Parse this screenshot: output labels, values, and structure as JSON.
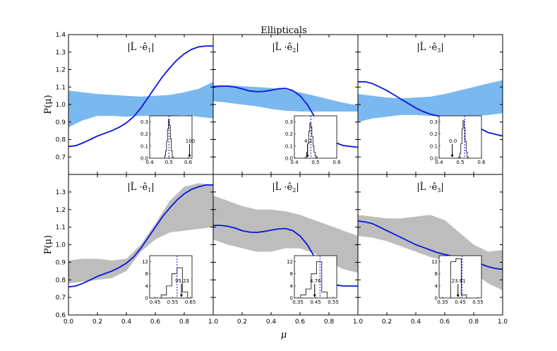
{
  "chart_data": {
    "type": "line",
    "title": "Ellipticals",
    "xlabel": "μ",
    "ylabel": "P(μ)",
    "xlim": [
      0.0,
      1.0
    ],
    "xticks": [
      "0.0",
      "0.2",
      "0.4",
      "0.6",
      "0.8",
      "1.0"
    ],
    "rows": [
      {
        "ylim": [
          0.6,
          1.4
        ],
        "yticks": [
          "1.4",
          "1.3",
          "1.2",
          "1.1",
          "1.0",
          "0.9",
          "0.8",
          "0.7"
        ],
        "band_color": "#7ab8f0",
        "panels": [
          {
            "label_num": "1",
            "band": {
              "x": [
                0,
                0.1,
                0.2,
                0.3,
                0.4,
                0.5,
                0.6,
                0.7,
                0.8,
                0.9,
                1.0
              ],
              "upper": [
                1.08,
                1.07,
                1.06,
                1.055,
                1.05,
                1.045,
                1.05,
                1.055,
                1.07,
                1.09,
                1.13
              ],
              "lower": [
                0.87,
                0.91,
                0.935,
                0.935,
                0.93,
                0.935,
                0.935,
                0.935,
                0.94,
                0.93,
                0.92
              ]
            },
            "curve": {
              "x": [
                0,
                0.05,
                0.1,
                0.15,
                0.2,
                0.25,
                0.3,
                0.35,
                0.4,
                0.45,
                0.5,
                0.55,
                0.6,
                0.65,
                0.7,
                0.75,
                0.8,
                0.85,
                0.9,
                0.95,
                1.0
              ],
              "y": [
                0.76,
                0.765,
                0.78,
                0.8,
                0.82,
                0.835,
                0.85,
                0.87,
                0.895,
                0.93,
                0.98,
                1.04,
                1.1,
                1.16,
                1.21,
                1.255,
                1.29,
                1.315,
                1.33,
                1.335,
                1.335
              ]
            },
            "inset": {
              "xlim": [
                0.4,
                0.62
              ],
              "ylim": [
                0,
                0.35
              ],
              "xticks": [
                "0.4",
                "0.5",
                "0.6"
              ],
              "yticks": [
                "0.3",
                "0.2",
                "0.1",
                "0.0"
              ],
              "hist_x": [
                0.48,
                0.485,
                0.49,
                0.495,
                0.5,
                0.505,
                0.51,
                0.515,
                0.52
              ],
              "hist_y": [
                0.02,
                0.06,
                0.14,
                0.24,
                0.32,
                0.27,
                0.16,
                0.06,
                0.01
              ],
              "mean": 0.5,
              "observed": 0.607,
              "annotation": "100"
            }
          },
          {
            "label_num": "2",
            "band": {
              "x": [
                0,
                0.1,
                0.2,
                0.3,
                0.4,
                0.5,
                0.6,
                0.7,
                0.8,
                0.9,
                1.0
              ],
              "upper": [
                1.11,
                1.11,
                1.105,
                1.1,
                1.095,
                1.085,
                1.07,
                1.05,
                1.03,
                1.01,
                0.995
              ],
              "lower": [
                1.02,
                1.01,
                1.0,
                0.99,
                0.975,
                0.965,
                0.96,
                0.96,
                0.96,
                0.96,
                0.96
              ]
            },
            "curve": {
              "x": [
                0,
                0.05,
                0.1,
                0.15,
                0.2,
                0.25,
                0.3,
                0.35,
                0.4,
                0.45,
                0.5,
                0.55,
                0.6,
                0.65,
                0.7,
                0.75,
                0.8,
                0.85,
                0.9,
                0.95,
                1.0
              ],
              "y": [
                1.1,
                1.105,
                1.105,
                1.1,
                1.09,
                1.078,
                1.073,
                1.075,
                1.082,
                1.09,
                1.092,
                1.08,
                1.05,
                1.0,
                0.93,
                0.86,
                0.81,
                0.78,
                0.765,
                0.76,
                0.755
              ]
            },
            "inset": {
              "xlim": [
                0.4,
                0.6
              ],
              "ylim": [
                0,
                0.35
              ],
              "xticks": [
                "0.4",
                "0.5",
                "0.6"
              ],
              "yticks": [
                "0.3",
                "0.2",
                "0.1",
                "0.0"
              ],
              "hist_x": [
                0.455,
                0.46,
                0.465,
                0.47,
                0.475,
                0.48,
                0.485,
                0.49,
                0.495,
                0.5,
                0.505
              ],
              "hist_y": [
                0.01,
                0.05,
                0.12,
                0.22,
                0.29,
                0.26,
                0.18,
                0.1,
                0.05,
                0.02,
                0.01
              ],
              "mean": 0.478,
              "observed": 0.462,
              "annotation": "4.2"
            }
          },
          {
            "label_num": "3",
            "band": {
              "x": [
                0,
                0.1,
                0.2,
                0.3,
                0.4,
                0.5,
                0.6,
                0.7,
                0.8,
                0.9,
                1.0
              ],
              "upper": [
                1.06,
                1.05,
                1.04,
                1.035,
                1.04,
                1.045,
                1.06,
                1.08,
                1.1,
                1.12,
                1.14
              ],
              "lower": [
                0.9,
                0.92,
                0.93,
                0.94,
                0.94,
                0.935,
                0.93,
                0.93,
                0.935,
                0.94,
                0.95
              ]
            },
            "curve": {
              "x": [
                0,
                0.05,
                0.1,
                0.15,
                0.2,
                0.25,
                0.3,
                0.35,
                0.4,
                0.45,
                0.5,
                0.55,
                0.6,
                0.65,
                0.7,
                0.75,
                0.8,
                0.85,
                0.9,
                0.95,
                1.0
              ],
              "y": [
                1.13,
                1.13,
                1.12,
                1.1,
                1.08,
                1.055,
                1.03,
                1.005,
                0.98,
                0.96,
                0.945,
                0.935,
                0.93,
                0.925,
                0.915,
                0.9,
                0.88,
                0.86,
                0.84,
                0.83,
                0.82
              ]
            },
            "inset": {
              "xlim": [
                0.4,
                0.6
              ],
              "ylim": [
                0,
                0.35
              ],
              "xticks": [
                "0.4",
                "0.5",
                "0.6"
              ],
              "yticks": [
                "0.3",
                "0.2",
                "0.1",
                "0.0"
              ],
              "hist_x": [
                0.495,
                0.5,
                0.505,
                0.51,
                0.515,
                0.52,
                0.525,
                0.53,
                0.535
              ],
              "hist_y": [
                0.01,
                0.04,
                0.12,
                0.24,
                0.31,
                0.25,
                0.14,
                0.05,
                0.01
              ],
              "mean": 0.52,
              "observed": 0.462,
              "annotation": "0.0"
            }
          }
        ]
      },
      {
        "ylim": [
          0.6,
          1.4
        ],
        "yticks": [
          "1.3",
          "1.2",
          "1.1",
          "1.0",
          "0.9",
          "0.8",
          "0.7",
          "0.6"
        ],
        "band_color": "#bdbdbd",
        "panels": [
          {
            "label_num": "1",
            "band": {
              "x": [
                0,
                0.1,
                0.2,
                0.3,
                0.4,
                0.5,
                0.6,
                0.7,
                0.8,
                0.9,
                1.0
              ],
              "upper": [
                0.91,
                0.92,
                0.92,
                0.91,
                0.92,
                1.0,
                1.12,
                1.25,
                1.33,
                1.35,
                1.34
              ],
              "lower": [
                0.78,
                0.79,
                0.8,
                0.81,
                0.85,
                0.96,
                1.03,
                1.07,
                1.08,
                1.09,
                1.1
              ]
            },
            "curve": {
              "x": [
                0,
                0.05,
                0.1,
                0.15,
                0.2,
                0.25,
                0.3,
                0.35,
                0.4,
                0.45,
                0.5,
                0.55,
                0.6,
                0.65,
                0.7,
                0.75,
                0.8,
                0.85,
                0.9,
                0.95,
                1.0
              ],
              "y": [
                0.76,
                0.765,
                0.78,
                0.8,
                0.82,
                0.835,
                0.85,
                0.87,
                0.895,
                0.93,
                0.98,
                1.04,
                1.1,
                1.16,
                1.21,
                1.255,
                1.29,
                1.315,
                1.33,
                1.34,
                1.34
              ]
            },
            "inset": {
              "xlim": [
                0.42,
                0.66
              ],
              "ylim": [
                0,
                14
              ],
              "xticks": [
                "0.45",
                "0.55",
                "0.65"
              ],
              "yticks": [
                "12",
                "8",
                "4",
                "0"
              ],
              "hist_x": [
                0.5,
                0.53,
                0.56,
                0.59,
                0.62
              ],
              "hist_y": [
                1,
                4,
                8,
                10,
                2
              ],
              "mean": 0.575,
              "observed": 0.6,
              "annotation": "95.23"
            }
          },
          {
            "label_num": "2",
            "band": {
              "x": [
                0,
                0.1,
                0.2,
                0.3,
                0.4,
                0.5,
                0.6,
                0.7,
                0.8,
                0.9,
                1.0
              ],
              "upper": [
                1.28,
                1.25,
                1.22,
                1.2,
                1.2,
                1.19,
                1.17,
                1.14,
                1.11,
                1.08,
                1.05
              ],
              "lower": [
                1.03,
                1.0,
                0.98,
                0.96,
                0.96,
                0.98,
                0.98,
                0.95,
                0.9,
                0.86,
                0.84
              ]
            },
            "curve": {
              "x": [
                0,
                0.05,
                0.1,
                0.15,
                0.2,
                0.25,
                0.3,
                0.35,
                0.4,
                0.45,
                0.5,
                0.55,
                0.6,
                0.65,
                0.7,
                0.75,
                0.8,
                0.85,
                0.9,
                0.95,
                1.0
              ],
              "y": [
                1.11,
                1.11,
                1.105,
                1.095,
                1.08,
                1.072,
                1.07,
                1.075,
                1.083,
                1.09,
                1.092,
                1.08,
                1.05,
                1.0,
                0.93,
                0.86,
                0.8,
                0.77,
                0.765,
                0.765,
                0.765
              ]
            },
            "inset": {
              "xlim": [
                0.33,
                0.57
              ],
              "ylim": [
                0,
                14
              ],
              "xticks": [
                "0.35",
                "0.45",
                "0.55"
              ],
              "yticks": [
                "12",
                "8",
                "4",
                "0"
              ],
              "hist_x": [
                0.38,
                0.41,
                0.44,
                0.47,
                0.5
              ],
              "hist_y": [
                1,
                3,
                8,
                12,
                2
              ],
              "mean": 0.475,
              "observed": 0.445,
              "annotation": "4.76"
            }
          },
          {
            "label_num": "3",
            "band": {
              "x": [
                0,
                0.1,
                0.2,
                0.3,
                0.4,
                0.5,
                0.6,
                0.7,
                0.8,
                0.9,
                1.0
              ],
              "upper": [
                1.17,
                1.16,
                1.15,
                1.15,
                1.16,
                1.17,
                1.14,
                1.07,
                1.0,
                0.96,
                0.97
              ],
              "lower": [
                1.05,
                1.04,
                1.02,
                0.99,
                0.96,
                0.93,
                0.91,
                0.89,
                0.84,
                0.78,
                0.74
              ]
            },
            "curve": {
              "x": [
                0,
                0.05,
                0.1,
                0.15,
                0.2,
                0.25,
                0.3,
                0.35,
                0.4,
                0.45,
                0.5,
                0.55,
                0.6,
                0.65,
                0.7,
                0.75,
                0.8,
                0.85,
                0.9,
                0.95,
                1.0
              ],
              "y": [
                1.135,
                1.13,
                1.12,
                1.1,
                1.08,
                1.06,
                1.04,
                1.02,
                1.0,
                0.985,
                0.97,
                0.955,
                0.945,
                0.935,
                0.93,
                0.92,
                0.905,
                0.89,
                0.875,
                0.865,
                0.86
              ]
            },
            "inset": {
              "xlim": [
                0.33,
                0.57
              ],
              "ylim": [
                0,
                14
              ],
              "xticks": [
                "0.35",
                "0.45",
                "0.55"
              ],
              "yticks": [
                "12",
                "8",
                "4",
                "0"
              ],
              "hist_x": [
                0.41,
                0.44,
                0.47
              ],
              "hist_y": [
                12,
                13,
                1
              ],
              "mean": 0.46,
              "observed": 0.437,
              "annotation": "23.81"
            }
          }
        ]
      }
    ]
  }
}
